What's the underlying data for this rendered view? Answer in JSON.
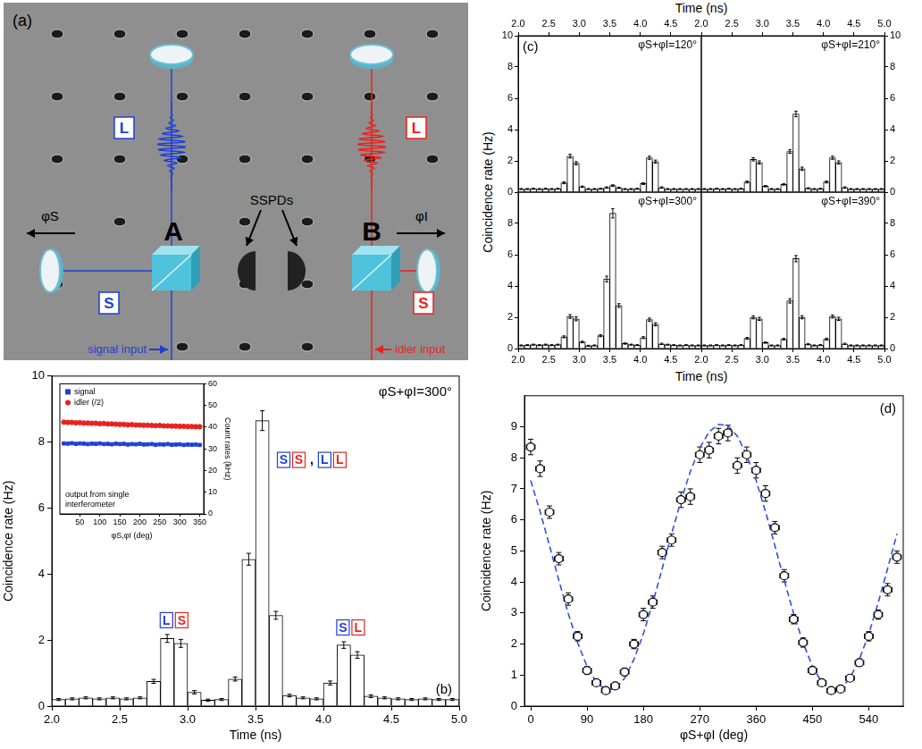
{
  "chart_data": [
    {
      "type": "bar",
      "panel_label": "(b)",
      "title": "φS+φI=300°",
      "x_label": "Time (ns)",
      "y_label": "Coincidence rate (Hz)",
      "x": [
        2.05,
        2.15,
        2.25,
        2.35,
        2.45,
        2.55,
        2.65,
        2.75,
        2.85,
        2.95,
        3.05,
        3.15,
        3.25,
        3.35,
        3.45,
        3.55,
        3.65,
        3.75,
        3.85,
        3.95,
        4.05,
        4.15,
        4.25,
        4.35,
        4.45,
        4.55,
        4.65,
        4.75,
        4.85,
        4.95
      ],
      "values": [
        0.2,
        0.22,
        0.25,
        0.22,
        0.25,
        0.22,
        0.25,
        0.75,
        2.05,
        1.9,
        0.42,
        0.18,
        0.2,
        0.82,
        4.45,
        8.65,
        2.75,
        0.32,
        0.25,
        0.22,
        0.7,
        1.85,
        1.55,
        0.3,
        0.25,
        0.22,
        0.2,
        0.22,
        0.2,
        0.2
      ],
      "errors": [
        0.03,
        0.03,
        0.03,
        0.03,
        0.03,
        0.03,
        0.03,
        0.06,
        0.12,
        0.12,
        0.05,
        0.03,
        0.03,
        0.06,
        0.18,
        0.3,
        0.12,
        0.04,
        0.03,
        0.03,
        0.06,
        0.1,
        0.1,
        0.04,
        0.03,
        0.03,
        0.03,
        0.03,
        0.03,
        0.03
      ],
      "color": "#ffffff",
      "xlim": [
        2,
        5
      ],
      "xticks": [
        {
          "value": 2,
          "label": "2.0"
        },
        2.5,
        {
          "value": 3,
          "label": "3.0"
        },
        3.5,
        {
          "value": 4,
          "label": "4.0"
        },
        4.5,
        {
          "value": 5,
          "label": "5.0"
        }
      ],
      "ylim": [
        0,
        10
      ],
      "yticks": [
        0,
        2,
        4,
        6,
        8,
        10
      ],
      "grid": false,
      "annotations": [
        {
          "x": 2.9,
          "text": [
            "L",
            "S"
          ],
          "colors": [
            "#1f3fd6",
            "#e8231e"
          ]
        },
        {
          "x": 3.5,
          "text": [
            "S",
            "S",
            ",",
            "L",
            "L"
          ],
          "colors": [
            "#1f3fd6",
            "#e8231e",
            "#000000",
            "#1f3fd6",
            "#e8231e"
          ]
        },
        {
          "x": 4.2,
          "text": [
            "S",
            "L"
          ],
          "colors": [
            "#1f3fd6",
            "#e8231e"
          ]
        }
      ]
    },
    {
      "type": "scatter",
      "x_label": "φS,φI (deg)",
      "y_label": "Count rates (kHz)",
      "annotation": "output from single interferometer",
      "legend": "upper left",
      "grid": false,
      "x": [
        10,
        20,
        30,
        40,
        50,
        60,
        70,
        80,
        90,
        100,
        110,
        120,
        130,
        140,
        150,
        160,
        170,
        180,
        190,
        200,
        210,
        220,
        230,
        240,
        250,
        260,
        270,
        280,
        290,
        300,
        310,
        320,
        330,
        340,
        350
      ],
      "xlim": [
        0,
        360
      ],
      "xticks": [
        50,
        100,
        150,
        200,
        250,
        300,
        350
      ],
      "y2lim": [
        0,
        60
      ],
      "y2ticks": [
        0,
        10,
        20,
        30,
        40,
        50,
        60
      ],
      "series": [
        {
          "name": "signal",
          "color": "#1f3fd6",
          "marker": "square",
          "axis": "y2",
          "values": [
            32.5,
            32.4,
            32.6,
            32.3,
            32.5,
            32.4,
            32.2,
            32.4,
            32.3,
            32.5,
            32.2,
            32.3,
            32.1,
            32.4,
            32.2,
            32.3,
            32.0,
            32.2,
            32.1,
            32.3,
            32.0,
            32.1,
            32.2,
            31.9,
            32.1,
            32.0,
            32.2,
            31.9,
            32.0,
            32.1,
            31.8,
            32.0,
            31.9,
            32.0,
            31.8
          ]
        },
        {
          "name": "idler (/2)",
          "color": "#e8231e",
          "marker": "circle",
          "axis": "y2",
          "values": [
            42.3,
            42.2,
            42.2,
            42.0,
            42.1,
            41.9,
            41.9,
            41.8,
            41.8,
            41.6,
            41.7,
            41.5,
            41.5,
            41.4,
            41.3,
            41.3,
            41.1,
            41.2,
            41.0,
            41.0,
            40.9,
            40.9,
            40.8,
            40.7,
            40.8,
            40.6,
            40.6,
            40.5,
            40.5,
            40.4,
            40.4,
            40.3,
            40.3,
            40.2,
            40.2
          ]
        }
      ]
    },
    {
      "type": "bar",
      "panel_label": "(c)",
      "x_label": "Time (ns)",
      "y_label": "Coincidence rate (Hz)",
      "color": "#ffffff",
      "grid": false,
      "xlim": [
        2,
        5
      ],
      "ylim": [
        0,
        10
      ],
      "x": [
        2.05,
        2.15,
        2.25,
        2.35,
        2.45,
        2.55,
        2.65,
        2.75,
        2.85,
        2.95,
        3.05,
        3.15,
        3.25,
        3.35,
        3.45,
        3.55,
        3.65,
        3.75,
        3.85,
        3.95,
        4.05,
        4.15,
        4.25,
        4.35,
        4.45,
        4.55,
        4.65,
        4.75,
        4.85,
        4.95
      ],
      "subplots": [
        {
          "title": "φS+φI=120°",
          "xticks": [
            {
              "value": 2,
              "label": "2.0"
            },
            2.5,
            {
              "value": 3,
              "label": "3.0"
            },
            3.5,
            {
              "value": 4,
              "label": "4.0"
            },
            4.5
          ],
          "yticks": [
            0,
            2,
            4,
            6,
            8,
            10
          ],
          "values": [
            0.2,
            0.2,
            0.22,
            0.2,
            0.22,
            0.2,
            0.22,
            0.6,
            2.3,
            1.85,
            0.35,
            0.2,
            0.2,
            0.22,
            0.3,
            0.42,
            0.28,
            0.2,
            0.2,
            0.22,
            0.55,
            2.2,
            1.95,
            0.3,
            0.2,
            0.2,
            0.2,
            0.2,
            0.2,
            0.2
          ],
          "errors": [
            0.03,
            0.03,
            0.03,
            0.03,
            0.03,
            0.03,
            0.03,
            0.06,
            0.12,
            0.1,
            0.04,
            0.03,
            0.03,
            0.03,
            0.04,
            0.05,
            0.04,
            0.03,
            0.03,
            0.03,
            0.06,
            0.1,
            0.1,
            0.04,
            0.03,
            0.03,
            0.03,
            0.03,
            0.03,
            0.03
          ]
        },
        {
          "title": "φS+φI=210°",
          "xticks": [
            {
              "value": 2,
              "label": "2.0"
            },
            2.5,
            {
              "value": 3,
              "label": "3.0"
            },
            3.5,
            {
              "value": 4,
              "label": "4.0"
            },
            4.5,
            {
              "value": 5,
              "label": "5.0"
            }
          ],
          "yticks": [
            0,
            2,
            4,
            6,
            8,
            10
          ],
          "values": [
            0.2,
            0.2,
            0.22,
            0.2,
            0.22,
            0.2,
            0.22,
            0.65,
            2.1,
            1.9,
            0.38,
            0.2,
            0.2,
            0.5,
            2.6,
            5.0,
            1.5,
            0.25,
            0.2,
            0.22,
            0.65,
            2.2,
            1.9,
            0.3,
            0.2,
            0.2,
            0.2,
            0.2,
            0.2,
            0.2
          ],
          "errors": [
            0.03,
            0.03,
            0.03,
            0.03,
            0.03,
            0.03,
            0.03,
            0.06,
            0.1,
            0.1,
            0.04,
            0.03,
            0.03,
            0.05,
            0.12,
            0.18,
            0.1,
            0.03,
            0.03,
            0.03,
            0.06,
            0.1,
            0.1,
            0.04,
            0.03,
            0.03,
            0.03,
            0.03,
            0.03,
            0.03
          ]
        },
        {
          "title": "φS+φI=300°",
          "xticks": [
            {
              "value": 2,
              "label": "2.0"
            },
            2.5,
            {
              "value": 3,
              "label": "3.0"
            },
            3.5,
            {
              "value": 4,
              "label": "4.0"
            },
            4.5
          ],
          "yticks": [
            0,
            2,
            4,
            6,
            8
          ],
          "values": [
            0.2,
            0.22,
            0.25,
            0.22,
            0.25,
            0.22,
            0.25,
            0.75,
            2.05,
            1.9,
            0.42,
            0.18,
            0.2,
            0.82,
            4.45,
            8.65,
            2.75,
            0.32,
            0.25,
            0.22,
            0.7,
            1.85,
            1.55,
            0.3,
            0.25,
            0.22,
            0.2,
            0.22,
            0.2,
            0.2
          ],
          "errors": [
            0.03,
            0.03,
            0.03,
            0.03,
            0.03,
            0.03,
            0.03,
            0.06,
            0.12,
            0.12,
            0.05,
            0.03,
            0.03,
            0.06,
            0.18,
            0.3,
            0.12,
            0.04,
            0.03,
            0.03,
            0.06,
            0.1,
            0.1,
            0.04,
            0.03,
            0.03,
            0.03,
            0.03,
            0.03,
            0.03
          ]
        },
        {
          "title": "φS+φI=390°",
          "xticks": [
            {
              "value": 2,
              "label": "2.0"
            },
            2.5,
            {
              "value": 3,
              "label": "3.0"
            },
            3.5,
            {
              "value": 4,
              "label": "4.0"
            },
            4.5,
            {
              "value": 5,
              "label": "5.0"
            }
          ],
          "yticks": [
            0,
            2,
            4,
            6,
            8
          ],
          "values": [
            0.2,
            0.2,
            0.22,
            0.2,
            0.22,
            0.2,
            0.22,
            0.65,
            2.0,
            1.9,
            0.38,
            0.2,
            0.2,
            0.6,
            3.05,
            5.75,
            2.0,
            0.28,
            0.2,
            0.22,
            0.6,
            2.05,
            1.9,
            0.3,
            0.2,
            0.2,
            0.2,
            0.2,
            0.2,
            0.2
          ],
          "errors": [
            0.03,
            0.03,
            0.03,
            0.03,
            0.03,
            0.03,
            0.03,
            0.06,
            0.1,
            0.1,
            0.04,
            0.03,
            0.03,
            0.05,
            0.14,
            0.2,
            0.1,
            0.04,
            0.03,
            0.03,
            0.06,
            0.1,
            0.1,
            0.04,
            0.03,
            0.03,
            0.03,
            0.03,
            0.03,
            0.03
          ]
        }
      ]
    },
    {
      "type": "scatter",
      "panel_label": "(d)",
      "x_label": "φS+φI (deg)",
      "y_label": "Coincidence rate (Hz)",
      "grid": false,
      "xlim": [
        -10,
        595
      ],
      "xticks": [
        0,
        90,
        180,
        270,
        360,
        450,
        540
      ],
      "ylim": [
        0,
        10
      ],
      "yticks": [
        0,
        1,
        2,
        3,
        4,
        5,
        6,
        7,
        8,
        9
      ],
      "series": [
        {
          "type": "scatter",
          "marker": "circle",
          "color": "#000000",
          "x": [
            0,
            15,
            30,
            45,
            60,
            75,
            90,
            105,
            120,
            135,
            150,
            165,
            180,
            195,
            210,
            225,
            240,
            255,
            270,
            285,
            300,
            315,
            330,
            345,
            360,
            375,
            390,
            405,
            420,
            435,
            450,
            465,
            480,
            495,
            510,
            525,
            540,
            555,
            570,
            585
          ],
          "values": [
            8.35,
            7.65,
            6.25,
            4.75,
            3.45,
            2.25,
            1.15,
            0.75,
            0.5,
            0.65,
            1.1,
            2.0,
            2.95,
            3.35,
            4.95,
            5.35,
            6.65,
            6.75,
            8.1,
            8.25,
            8.7,
            8.8,
            7.75,
            8.1,
            7.6,
            6.85,
            5.75,
            4.2,
            2.8,
            2.05,
            1.15,
            0.75,
            0.5,
            0.55,
            0.9,
            1.4,
            2.25,
            2.95,
            3.75,
            4.8
          ],
          "errors": [
            0.25,
            0.25,
            0.2,
            0.2,
            0.2,
            0.15,
            0.12,
            0.1,
            0.1,
            0.1,
            0.12,
            0.15,
            0.2,
            0.2,
            0.2,
            0.2,
            0.25,
            0.25,
            0.25,
            0.25,
            0.25,
            0.25,
            0.25,
            0.25,
            0.25,
            0.25,
            0.2,
            0.2,
            0.15,
            0.15,
            0.12,
            0.1,
            0.1,
            0.1,
            0.1,
            0.12,
            0.15,
            0.15,
            0.2,
            0.2
          ],
          "x_errors": [
            7,
            7,
            7,
            7,
            7,
            7,
            7,
            7,
            7,
            7,
            7,
            7,
            7,
            7,
            7,
            7,
            7,
            7,
            7,
            7,
            7,
            7,
            7,
            7,
            7,
            7,
            7,
            7,
            7,
            7,
            7,
            7,
            7,
            7,
            7,
            7,
            7,
            7,
            7,
            7
          ]
        },
        {
          "type": "line",
          "line_style": "dashed",
          "color": "#3050e0",
          "x": [
            0,
            15,
            30,
            45,
            60,
            75,
            90,
            105,
            120,
            135,
            150,
            165,
            180,
            195,
            210,
            225,
            240,
            255,
            270,
            285,
            300,
            315,
            330,
            345,
            360,
            375,
            390,
            405,
            420,
            435,
            450,
            465,
            480,
            495,
            510,
            525,
            540,
            555,
            570,
            585
          ],
          "values": [
            7.27,
            6.27,
            5.17,
            4.05,
            2.98,
            2.04,
            1.28,
            0.76,
            0.52,
            0.56,
            0.9,
            1.51,
            2.33,
            3.33,
            4.43,
            5.55,
            6.62,
            7.56,
            8.32,
            8.84,
            9.08,
            9.04,
            8.7,
            8.09,
            7.27,
            6.27,
            5.17,
            4.05,
            2.98,
            2.04,
            1.28,
            0.76,
            0.52,
            0.56,
            0.9,
            1.51,
            2.33,
            3.33,
            4.43,
            5.55
          ]
        }
      ]
    }
  ],
  "diagram": {
    "panel_label": "(a)",
    "arm_labels": {
      "long": "L",
      "short": "S"
    },
    "interferometers": [
      "A",
      "B"
    ],
    "detectors": "SSPDs",
    "phases": [
      "φS",
      "φI"
    ],
    "inputs": [
      "signal input",
      "idler input"
    ],
    "colors": [
      "#1f3fd6",
      "#e8231e"
    ]
  }
}
